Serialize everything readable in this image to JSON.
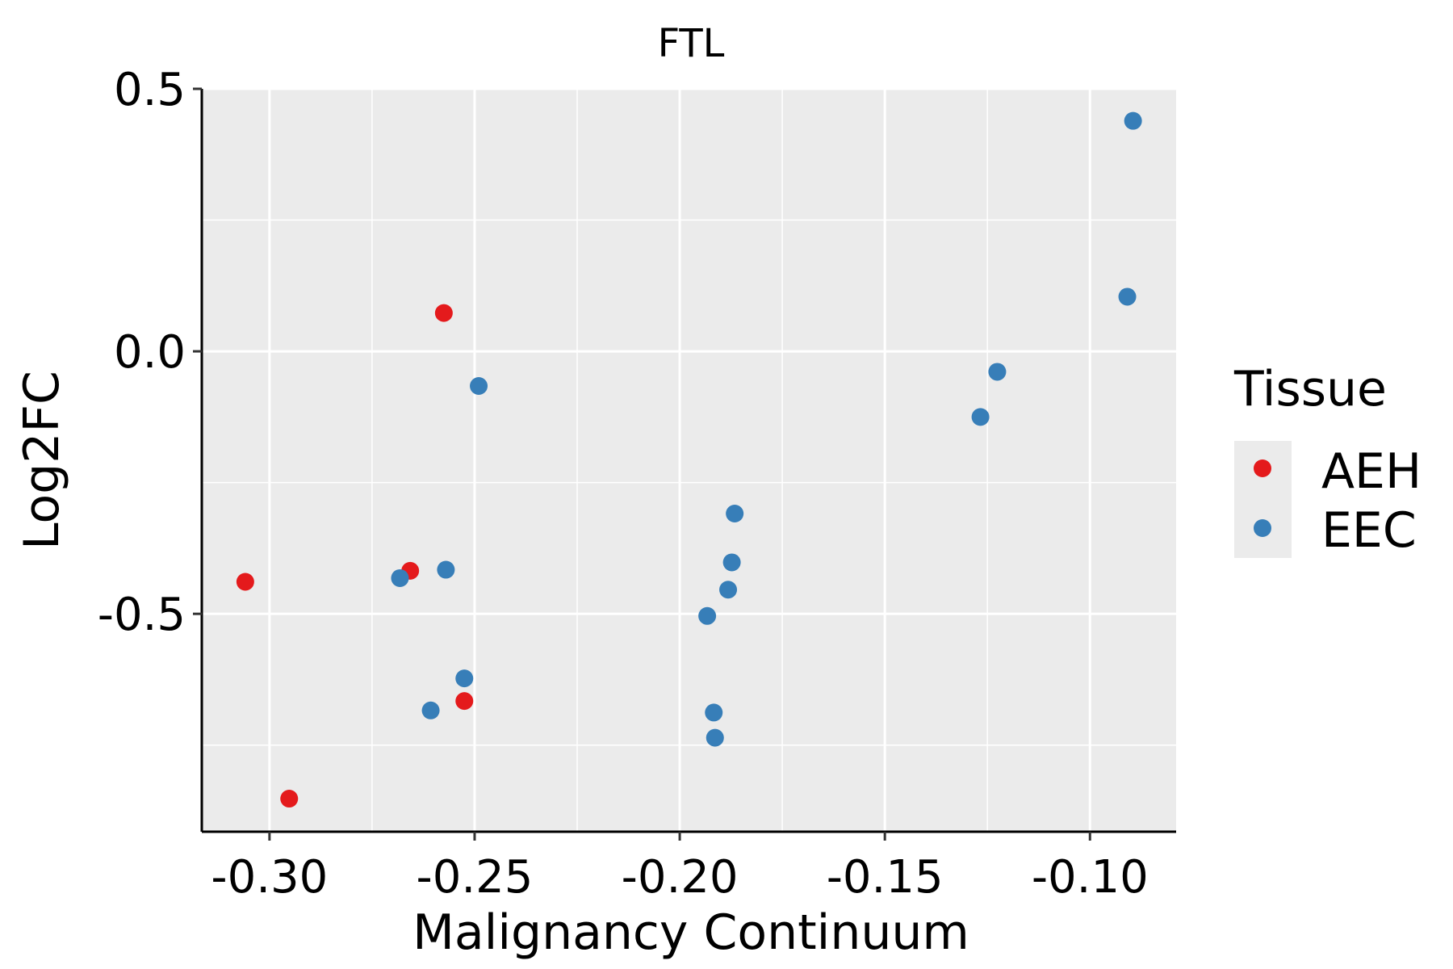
{
  "chart_data": {
    "type": "scatter",
    "title": "FTL",
    "xlabel": "Malignancy Continuum",
    "ylabel": "Log2FC",
    "xlim": [
      -0.3165,
      -0.079
    ],
    "ylim": [
      -0.915,
      0.5
    ],
    "xticks": [
      -0.3,
      -0.25,
      -0.2,
      -0.15,
      -0.1
    ],
    "xtick_labels": [
      "-0.30",
      "-0.25",
      "-0.20",
      "-0.15",
      "-0.10"
    ],
    "yticks": [
      0.5,
      0.0,
      -0.5
    ],
    "ytick_labels": [
      "0.5",
      "0.0",
      "-0.5"
    ],
    "grid": true,
    "legend": {
      "title": "Tissue",
      "placement": "right"
    },
    "series": [
      {
        "name": "AEH",
        "color": "#e41a1c",
        "points": [
          [
            -0.3059,
            -0.439
          ],
          [
            -0.2952,
            -0.852
          ],
          [
            -0.2575,
            0.073
          ],
          [
            -0.2657,
            -0.418
          ],
          [
            -0.2525,
            -0.666
          ]
        ]
      },
      {
        "name": "EEC",
        "color": "#377eb8",
        "points": [
          [
            -0.0895,
            0.439
          ],
          [
            -0.0909,
            0.104
          ],
          [
            -0.1226,
            -0.039
          ],
          [
            -0.1267,
            -0.125
          ],
          [
            -0.249,
            -0.066
          ],
          [
            -0.1866,
            -0.309
          ],
          [
            -0.1873,
            -0.402
          ],
          [
            -0.1882,
            -0.454
          ],
          [
            -0.1933,
            -0.504
          ],
          [
            -0.257,
            -0.416
          ],
          [
            -0.2682,
            -0.432
          ],
          [
            -0.2525,
            -0.623
          ],
          [
            -0.2607,
            -0.684
          ],
          [
            -0.1917,
            -0.688
          ],
          [
            -0.1914,
            -0.736
          ]
        ]
      }
    ]
  }
}
